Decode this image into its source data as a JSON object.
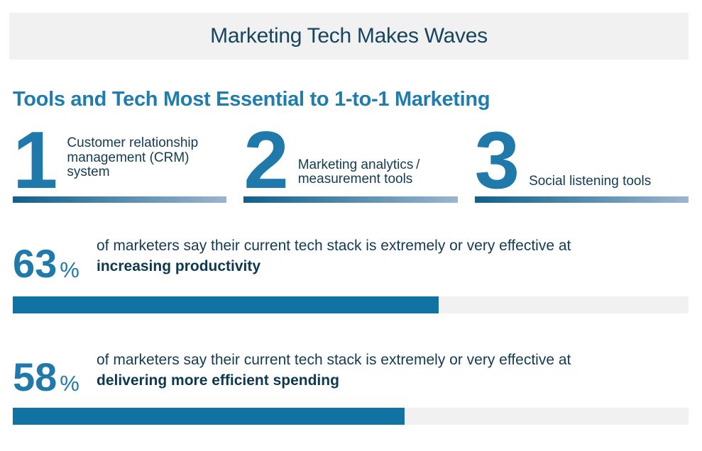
{
  "header": {
    "title": "Marketing Tech Makes Waves"
  },
  "section": {
    "heading": "Tools and Tech Most Essential to 1-to-1 Marketing"
  },
  "tools": [
    {
      "rank": "1",
      "label_lines": [
        "Customer relationship",
        "management (CRM)",
        "system"
      ]
    },
    {
      "rank": "2",
      "label_lines": [
        "Marketing analytics /",
        "measurement tools"
      ]
    },
    {
      "rank": "3",
      "label_lines": [
        "Social listening tools"
      ]
    }
  ],
  "stats": [
    {
      "value": "63",
      "unit": "%",
      "description": "of marketers say their current tech stack is extremely or very effective at",
      "highlight": "increasing productivity",
      "percent": 63
    },
    {
      "value": "58",
      "unit": "%",
      "description": "of marketers say their current tech stack is extremely or very effective at",
      "highlight": "delivering more efficient spending",
      "percent": 58
    }
  ],
  "colors": {
    "accent_blue": "#1F79AB",
    "heading_blue": "#1E7CAF",
    "dark_text": "#123B54",
    "highlight_text": "#0D3950",
    "bar_fill": "#1173A3",
    "track_gray": "#F1F1F2",
    "header_bg": "#F1F1F2",
    "gradient_start": "#0E618C",
    "gradient_end": "#9BB5CE"
  },
  "chart_data": {
    "type": "bar",
    "orientation": "horizontal",
    "title": "Marketing Tech Makes Waves",
    "subtitle": "Tools and Tech Most Essential to 1-to-1 Marketing",
    "categories": [
      "increasing productivity",
      "delivering more efficient spending"
    ],
    "values": [
      63,
      58
    ],
    "value_unit": "%",
    "series_label": "of marketers say their current tech stack is extremely or very effective at",
    "xlim": [
      0,
      100
    ],
    "grid": false,
    "legend": false,
    "ranked_list": [
      {
        "rank": 1,
        "item": "Customer relationship management (CRM) system"
      },
      {
        "rank": 2,
        "item": "Marketing analytics/measurement tools"
      },
      {
        "rank": 3,
        "item": "Social listening tools"
      }
    ]
  }
}
